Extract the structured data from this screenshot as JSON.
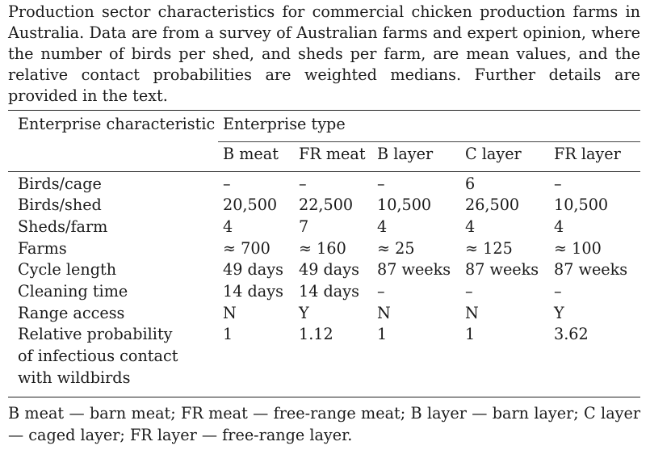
{
  "caption": "Production sector characteristics for commercial chicken production farms in Australia. Data are from a survey of Australian farms and expert opinion, where the number of birds per shed, and sheds per farm, are mean values, and the relative contact probabilities are weighted medians. Further details are provided in the text.",
  "table": {
    "header_characteristic": "Enterprise characteristic",
    "header_type": "Enterprise type",
    "columns": [
      "B meat",
      "FR meat",
      "B layer",
      "C layer",
      "FR layer"
    ],
    "rows": [
      {
        "label": "Birds/cage",
        "values": [
          "–",
          "–",
          "–",
          "6",
          "–"
        ]
      },
      {
        "label": "Birds/shed",
        "values": [
          "20,500",
          "22,500",
          "10,500",
          "26,500",
          "10,500"
        ]
      },
      {
        "label": "Sheds/farm",
        "values": [
          "4",
          "7",
          "4",
          "4",
          "4"
        ]
      },
      {
        "label": "Farms",
        "values": [
          "≈ 700",
          "≈ 160",
          "≈ 25",
          "≈ 125",
          "≈ 100"
        ]
      },
      {
        "label": "Cycle length",
        "values": [
          "49 days",
          "49 days",
          "87 weeks",
          "87 weeks",
          "87 weeks"
        ]
      },
      {
        "label": "Cleaning time",
        "values": [
          "14 days",
          "14 days",
          "–",
          "–",
          "–"
        ]
      },
      {
        "label": "Range access",
        "values": [
          "N",
          "Y",
          "N",
          "N",
          "Y"
        ]
      },
      {
        "label_lines": [
          "Relative probability",
          "of infectious contact",
          "with wildbirds"
        ],
        "values": [
          "1",
          "1.12",
          "1",
          "1",
          "3.62"
        ]
      }
    ]
  },
  "footnote": "B meat — barn meat; FR meat — free-range meat; B layer — barn layer; C layer — caged layer; FR layer — free-range layer."
}
